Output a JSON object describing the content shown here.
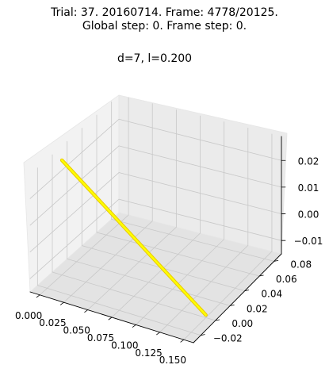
{
  "chart_data": {
    "type": "line",
    "projection": "3d",
    "title_line1": "Trial: 37. 20160714. Frame: 4778/20125.",
    "title_line2": "Global step: 0. Frame step: 0.",
    "subtitle": "d=7, l=0.200",
    "xlabel": "",
    "ylabel": "",
    "zlabel": "",
    "x_ticks": [
      "0.000",
      "0.025",
      "0.050",
      "0.075",
      "0.100",
      "0.125",
      "0.150"
    ],
    "y_ticks": [
      "−0.02",
      "0.00",
      "0.02",
      "0.04",
      "0.06",
      "0.08"
    ],
    "z_ticks": [
      "−0.01",
      "0.00",
      "0.01",
      "0.02"
    ],
    "xlim": [
      -0.01,
      0.16
    ],
    "ylim": [
      -0.03,
      0.09
    ],
    "zlim": [
      -0.015,
      0.029
    ],
    "grid": true,
    "series": [
      {
        "color": "#ffff00",
        "edge_color": "#e8c800",
        "points": [
          {
            "x": 0.0,
            "y": 0.0,
            "z": 0.028
          },
          {
            "x": 0.15,
            "y": 0.0,
            "z": -0.014
          }
        ]
      }
    ]
  }
}
